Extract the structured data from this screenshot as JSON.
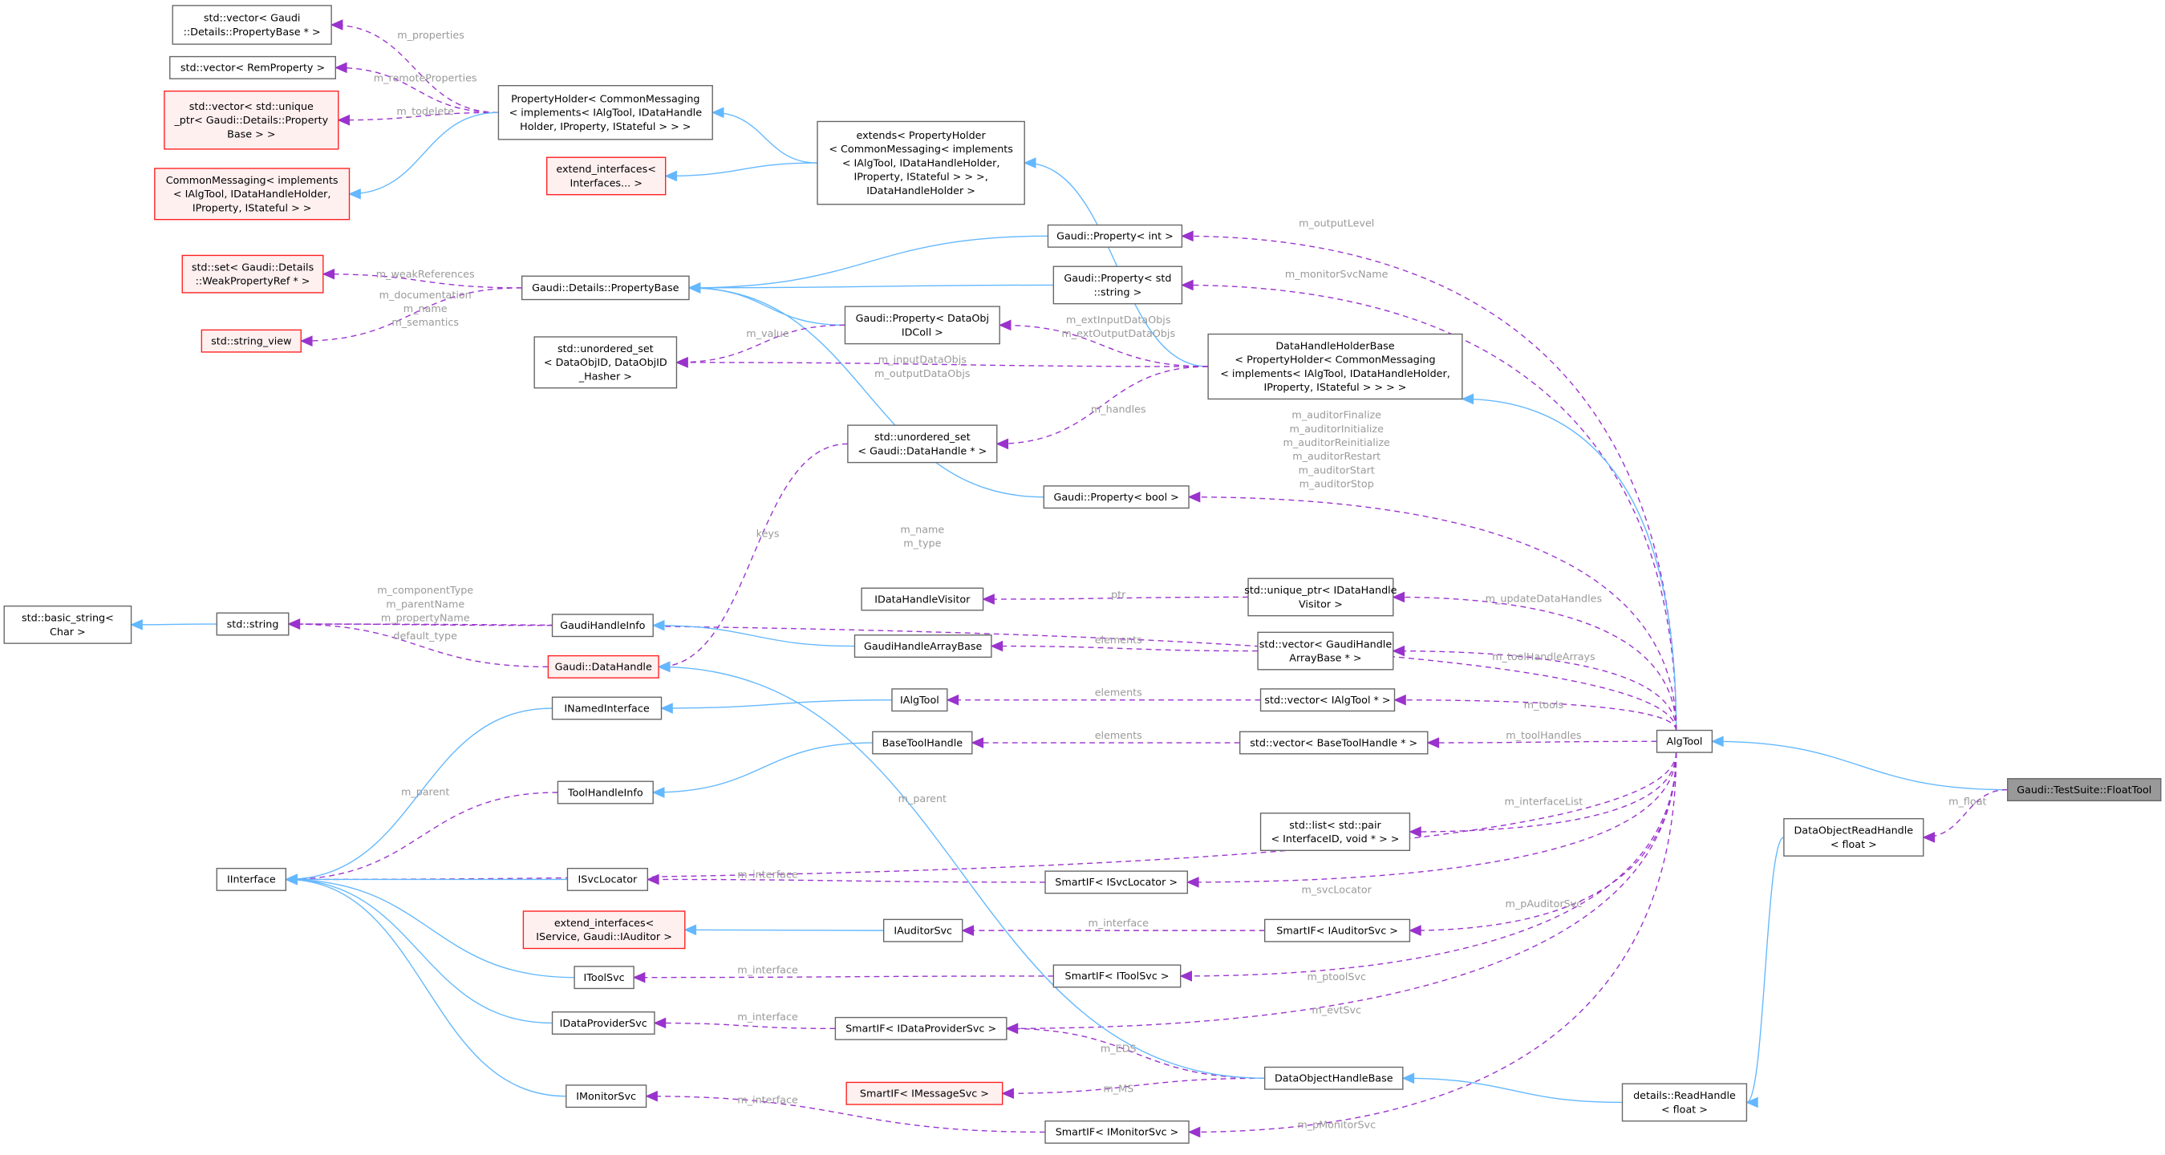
{
  "colors": {
    "usage_edge": "#9a32cd",
    "inheritance_edge": "#63b8ff",
    "incomplete_node_border": "#ff2020",
    "incomplete_node_fill": "#fff0f0",
    "focus_node_fill": "#999999",
    "edge_label": "#9a9a9a"
  },
  "nodes": [
    {
      "id": "vecPB",
      "lines": [
        "std::vector< Gaudi",
        "::Details::PropertyBase * >"
      ],
      "style": "normal"
    },
    {
      "id": "vecRem",
      "lines": [
        "std::vector< RemProperty >"
      ],
      "style": "normal"
    },
    {
      "id": "vecUnique",
      "lines": [
        "std::vector< std::unique",
        "_ptr< Gaudi::Details::Property",
        "Base > >"
      ],
      "style": "red"
    },
    {
      "id": "commonMsg",
      "lines": [
        "CommonMessaging< implements",
        "< IAlgTool, IDataHandleHolder,",
        "IProperty, IStateful > >"
      ],
      "style": "red"
    },
    {
      "id": "propHolder",
      "lines": [
        "PropertyHolder< CommonMessaging",
        "< implements< IAlgTool, IDataHandle",
        "Holder, IProperty, IStateful > > >"
      ],
      "style": "normal"
    },
    {
      "id": "extendIf",
      "lines": [
        "extend_interfaces<",
        "Interfaces... >"
      ],
      "style": "red"
    },
    {
      "id": "extends",
      "lines": [
        "extends< PropertyHolder",
        "< CommonMessaging< implements",
        "< IAlgTool, IDataHandleHolder,",
        "IProperty, IStateful > > >,",
        "IDataHandleHolder >"
      ],
      "style": "normal"
    },
    {
      "id": "setWeak",
      "lines": [
        "std::set< Gaudi::Details",
        "::WeakPropertyRef * >"
      ],
      "style": "red"
    },
    {
      "id": "strview",
      "lines": [
        "std::string_view"
      ],
      "style": "red"
    },
    {
      "id": "propBase",
      "lines": [
        "Gaudi::Details::PropertyBase"
      ],
      "style": "normal"
    },
    {
      "id": "propInt",
      "lines": [
        "Gaudi::Property< int >"
      ],
      "style": "normal"
    },
    {
      "id": "propStr",
      "lines": [
        "Gaudi::Property< std",
        "::string >"
      ],
      "style": "normal"
    },
    {
      "id": "propDataObj",
      "lines": [
        "Gaudi::Property< DataObj",
        "IDColl >"
      ],
      "style": "normal"
    },
    {
      "id": "unordDataObj",
      "lines": [
        "std::unordered_set",
        "< DataObjID, DataObjID",
        "_Hasher >"
      ],
      "style": "normal"
    },
    {
      "id": "dhhBase",
      "lines": [
        "DataHandleHolderBase",
        "< PropertyHolder< CommonMessaging",
        "< implements< IAlgTool, IDataHandleHolder,",
        "IProperty, IStateful > > > >"
      ],
      "style": "normal"
    },
    {
      "id": "unordDH",
      "lines": [
        "std::unordered_set",
        "< Gaudi::DataHandle * >"
      ],
      "style": "normal"
    },
    {
      "id": "propBool",
      "lines": [
        "Gaudi::Property< bool >"
      ],
      "style": "normal"
    },
    {
      "id": "basicStr",
      "lines": [
        "std::basic_string<",
        "Char >"
      ],
      "style": "normal"
    },
    {
      "id": "string",
      "lines": [
        "std::string"
      ],
      "style": "normal"
    },
    {
      "id": "gaudiHandleInfo",
      "lines": [
        "GaudiHandleInfo"
      ],
      "style": "normal"
    },
    {
      "id": "gaudiDataHandle",
      "lines": [
        "Gaudi::DataHandle"
      ],
      "style": "red"
    },
    {
      "id": "iDHVisitor",
      "lines": [
        "IDataHandleVisitor"
      ],
      "style": "normal"
    },
    {
      "id": "uniqueVisitor",
      "lines": [
        "std::unique_ptr< IDataHandle",
        "Visitor >"
      ],
      "style": "normal"
    },
    {
      "id": "ghab",
      "lines": [
        "GaudiHandleArrayBase"
      ],
      "style": "normal"
    },
    {
      "id": "vecGHAB",
      "lines": [
        "std::vector< GaudiHandle",
        "ArrayBase * >"
      ],
      "style": "normal"
    },
    {
      "id": "iNamed",
      "lines": [
        "INamedInterface"
      ],
      "style": "normal"
    },
    {
      "id": "iAlgTool",
      "lines": [
        "IAlgTool"
      ],
      "style": "normal"
    },
    {
      "id": "vecIAlgTool",
      "lines": [
        "std::vector< IAlgTool * >"
      ],
      "style": "normal"
    },
    {
      "id": "baseToolHandle",
      "lines": [
        "BaseToolHandle"
      ],
      "style": "normal"
    },
    {
      "id": "vecBTH",
      "lines": [
        "std::vector< BaseToolHandle * >"
      ],
      "style": "normal"
    },
    {
      "id": "algTool",
      "lines": [
        "AlgTool"
      ],
      "style": "normal"
    },
    {
      "id": "floatTool",
      "lines": [
        "Gaudi::TestSuite::FloatTool"
      ],
      "style": "gray"
    },
    {
      "id": "toolHandleInfo",
      "lines": [
        "ToolHandleInfo"
      ],
      "style": "normal"
    },
    {
      "id": "listPair",
      "lines": [
        "std::list< std::pair",
        "< InterfaceID, void * > >"
      ],
      "style": "normal"
    },
    {
      "id": "dorh",
      "lines": [
        "DataObjectReadHandle",
        "< float >"
      ],
      "style": "normal"
    },
    {
      "id": "iInterface",
      "lines": [
        "IInterface"
      ],
      "style": "normal"
    },
    {
      "id": "iSvcLocator",
      "lines": [
        "ISvcLocator"
      ],
      "style": "normal"
    },
    {
      "id": "smartSvcLoc",
      "lines": [
        "SmartIF< ISvcLocator >"
      ],
      "style": "normal"
    },
    {
      "id": "extendIfAud",
      "lines": [
        "extend_interfaces<",
        "IService, Gaudi::IAuditor >"
      ],
      "style": "red"
    },
    {
      "id": "iAuditorSvc",
      "lines": [
        "IAuditorSvc"
      ],
      "style": "normal"
    },
    {
      "id": "smartAud",
      "lines": [
        "SmartIF< IAuditorSvc >"
      ],
      "style": "normal"
    },
    {
      "id": "iToolSvc",
      "lines": [
        "IToolSvc"
      ],
      "style": "normal"
    },
    {
      "id": "smartTool",
      "lines": [
        "SmartIF< IToolSvc >"
      ],
      "style": "normal"
    },
    {
      "id": "iDPS",
      "lines": [
        "IDataProviderSvc"
      ],
      "style": "normal"
    },
    {
      "id": "smartDPS",
      "lines": [
        "SmartIF< IDataProviderSvc >"
      ],
      "style": "normal"
    },
    {
      "id": "dohBase",
      "lines": [
        "DataObjectHandleBase"
      ],
      "style": "normal"
    },
    {
      "id": "smartMsg",
      "lines": [
        "SmartIF< IMessageSvc >"
      ],
      "style": "red"
    },
    {
      "id": "iMonSvc",
      "lines": [
        "IMonitorSvc"
      ],
      "style": "normal"
    },
    {
      "id": "smartMon",
      "lines": [
        "SmartIF< IMonitorSvc >"
      ],
      "style": "normal"
    },
    {
      "id": "readHandle",
      "lines": [
        "details::ReadHandle",
        "< float >"
      ],
      "style": "normal"
    }
  ],
  "edges": [
    {
      "from": "propHolder",
      "to": "vecPB",
      "kind": "usage",
      "label": [
        "m_properties"
      ]
    },
    {
      "from": "propHolder",
      "to": "vecRem",
      "kind": "usage",
      "label": [
        "m_remoteProperties"
      ]
    },
    {
      "from": "propHolder",
      "to": "vecUnique",
      "kind": "usage",
      "label": [
        "m_todelete"
      ]
    },
    {
      "from": "propHolder",
      "to": "commonMsg",
      "kind": "inheritance",
      "label": []
    },
    {
      "from": "extends",
      "to": "propHolder",
      "kind": "inheritance",
      "label": []
    },
    {
      "from": "extends",
      "to": "extendIf",
      "kind": "inheritance",
      "label": []
    },
    {
      "from": "propBase",
      "to": "setWeak",
      "kind": "usage",
      "label": [
        "m_weakReferences"
      ]
    },
    {
      "from": "propBase",
      "to": "strview",
      "kind": "usage",
      "label": [
        "m_documentation",
        "m_name",
        "m_semantics"
      ]
    },
    {
      "from": "propInt",
      "to": "propBase",
      "kind": "inheritance",
      "label": []
    },
    {
      "from": "propStr",
      "to": "propBase",
      "kind": "inheritance",
      "label": []
    },
    {
      "from": "propDataObj",
      "to": "propBase",
      "kind": "inheritance",
      "label": []
    },
    {
      "from": "propBool",
      "to": "propBase",
      "kind": "inheritance",
      "label": []
    },
    {
      "from": "propDataObj",
      "to": "unordDataObj",
      "kind": "usage",
      "label": [
        "m_value"
      ]
    },
    {
      "from": "dhhBase",
      "to": "extends",
      "kind": "inheritance",
      "label": []
    },
    {
      "from": "dhhBase",
      "to": "propDataObj",
      "kind": "usage",
      "label": [
        "m_extInputDataObjs",
        "m_extOutputDataObjs"
      ]
    },
    {
      "from": "dhhBase",
      "to": "unordDataObj",
      "kind": "usage",
      "label": [
        "m_inputDataObjs",
        "m_outputDataObjs"
      ]
    },
    {
      "from": "dhhBase",
      "to": "unordDH",
      "kind": "usage",
      "label": [
        "m_handles"
      ]
    },
    {
      "from": "algTool",
      "to": "propInt",
      "kind": "usage",
      "label": [
        "m_outputLevel"
      ]
    },
    {
      "from": "algTool",
      "to": "propStr",
      "kind": "usage",
      "label": [
        "m_monitorSvcName"
      ]
    },
    {
      "from": "algTool",
      "to": "dhhBase",
      "kind": "inheritance",
      "label": []
    },
    {
      "from": "algTool",
      "to": "propBool",
      "kind": "usage",
      "label": [
        "m_auditorFinalize",
        "m_auditorInitialize",
        "m_auditorReinitialize",
        "m_auditorRestart",
        "m_auditorStart",
        "m_auditorStop"
      ]
    },
    {
      "from": "algTool",
      "to": "string",
      "kind": "usage",
      "label": [
        "m_name",
        "m_type"
      ]
    },
    {
      "from": "unordDH",
      "to": "gaudiDataHandle",
      "kind": "usage",
      "label": [
        "keys"
      ]
    },
    {
      "from": "string",
      "to": "basicStr",
      "kind": "inheritance",
      "label": []
    },
    {
      "from": "gaudiHandleInfo",
      "to": "string",
      "kind": "usage",
      "label": [
        "m_componentType",
        "m_parentName",
        "m_propertyName"
      ]
    },
    {
      "from": "gaudiDataHandle",
      "to": "string",
      "kind": "usage",
      "label": [
        "default_type"
      ]
    },
    {
      "from": "uniqueVisitor",
      "to": "iDHVisitor",
      "kind": "usage",
      "label": [
        "ptr"
      ]
    },
    {
      "from": "ghab",
      "to": "gaudiHandleInfo",
      "kind": "inheritance",
      "label": []
    },
    {
      "from": "vecGHAB",
      "to": "ghab",
      "kind": "usage",
      "label": [
        "elements"
      ]
    },
    {
      "from": "iAlgTool",
      "to": "iNamed",
      "kind": "inheritance",
      "label": []
    },
    {
      "from": "vecIAlgTool",
      "to": "iAlgTool",
      "kind": "usage",
      "label": [
        "elements"
      ]
    },
    {
      "from": "vecBTH",
      "to": "baseToolHandle",
      "kind": "usage",
      "label": [
        "elements"
      ]
    },
    {
      "from": "baseToolHandle",
      "to": "toolHandleInfo",
      "kind": "inheritance",
      "label": []
    },
    {
      "from": "algTool",
      "to": "uniqueVisitor",
      "kind": "usage",
      "label": [
        "m_updateDataHandles"
      ]
    },
    {
      "from": "algTool",
      "to": "vecGHAB",
      "kind": "usage",
      "label": [
        "m_toolHandleArrays"
      ]
    },
    {
      "from": "algTool",
      "to": "vecIAlgTool",
      "kind": "usage",
      "label": [
        "m_tools"
      ]
    },
    {
      "from": "algTool",
      "to": "vecBTH",
      "kind": "usage",
      "label": [
        "m_toolHandles"
      ]
    },
    {
      "from": "floatTool",
      "to": "algTool",
      "kind": "inheritance",
      "label": []
    },
    {
      "from": "floatTool",
      "to": "dorh",
      "kind": "usage",
      "label": [
        "m_float"
      ]
    },
    {
      "from": "algTool",
      "to": "iInterface",
      "kind": "usage",
      "label": [
        "m_parent"
      ]
    },
    {
      "from": "toolHandleInfo",
      "to": "iInterface",
      "kind": "usage",
      "label": [
        "m_parent"
      ]
    },
    {
      "from": "iNamed",
      "to": "iInterface",
      "kind": "inheritance",
      "label": []
    },
    {
      "from": "algTool",
      "to": "listPair",
      "kind": "usage",
      "label": [
        "m_interfaceList"
      ]
    },
    {
      "from": "iSvcLocator",
      "to": "iInterface",
      "kind": "inheritance",
      "label": []
    },
    {
      "from": "smartSvcLoc",
      "to": "iSvcLocator",
      "kind": "usage",
      "label": [
        "m_interface"
      ]
    },
    {
      "from": "algTool",
      "to": "smartSvcLoc",
      "kind": "usage",
      "label": [
        "m_svcLocator"
      ]
    },
    {
      "from": "iAuditorSvc",
      "to": "extendIfAud",
      "kind": "inheritance",
      "label": []
    },
    {
      "from": "smartAud",
      "to": "iAuditorSvc",
      "kind": "usage",
      "label": [
        "m_interface"
      ]
    },
    {
      "from": "algTool",
      "to": "smartAud",
      "kind": "usage",
      "label": [
        "m_pAuditorSvc"
      ]
    },
    {
      "from": "iToolSvc",
      "to": "iInterface",
      "kind": "inheritance",
      "label": []
    },
    {
      "from": "smartTool",
      "to": "iToolSvc",
      "kind": "usage",
      "label": [
        "m_interface"
      ]
    },
    {
      "from": "algTool",
      "to": "smartTool",
      "kind": "usage",
      "label": [
        "m_ptoolSvc"
      ]
    },
    {
      "from": "iDPS",
      "to": "iInterface",
      "kind": "inheritance",
      "label": []
    },
    {
      "from": "smartDPS",
      "to": "iDPS",
      "kind": "usage",
      "label": [
        "m_interface"
      ]
    },
    {
      "from": "algTool",
      "to": "smartDPS",
      "kind": "usage",
      "label": [
        "m_evtSvc"
      ]
    },
    {
      "from": "dohBase",
      "to": "smartDPS",
      "kind": "usage",
      "label": [
        "m_EDS"
      ]
    },
    {
      "from": "dohBase",
      "to": "smartMsg",
      "kind": "usage",
      "label": [
        "m_MS"
      ]
    },
    {
      "from": "dohBase",
      "to": "gaudiDataHandle",
      "kind": "inheritance",
      "label": []
    },
    {
      "from": "readHandle",
      "to": "dohBase",
      "kind": "inheritance",
      "label": []
    },
    {
      "from": "dorh",
      "to": "readHandle",
      "kind": "inheritance",
      "label": []
    },
    {
      "from": "iMonSvc",
      "to": "iInterface",
      "kind": "inheritance",
      "label": []
    },
    {
      "from": "smartMon",
      "to": "iMonSvc",
      "kind": "usage",
      "label": [
        "m_interface"
      ]
    },
    {
      "from": "algTool",
      "to": "smartMon",
      "kind": "usage",
      "label": [
        "m_pMonitorSvc"
      ]
    }
  ]
}
